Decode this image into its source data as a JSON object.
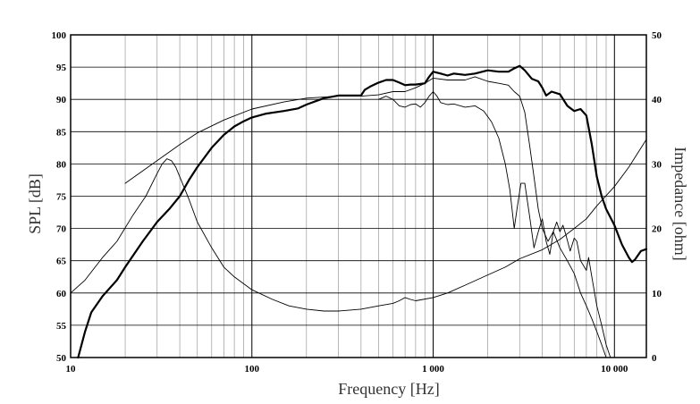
{
  "chart_data": {
    "type": "line",
    "xlabel": "Frequency [Hz]",
    "ylabel": "SPL [dB]",
    "y2label": "Impedance [ohm]",
    "x_scale": "log",
    "xlim": [
      10,
      15000
    ],
    "ylim": [
      50,
      100
    ],
    "y2lim": [
      0,
      50
    ],
    "grid": true,
    "x_ticks": [
      {
        "value": 10,
        "label": "10"
      },
      {
        "value": 100,
        "label": "100"
      },
      {
        "value": 1000,
        "label": "1 000"
      },
      {
        "value": 10000,
        "label": "10 000"
      }
    ],
    "y_ticks": [
      "50",
      "55",
      "60",
      "65",
      "70",
      "75",
      "80",
      "85",
      "90",
      "95",
      "100"
    ],
    "y2_ticks": [
      "0",
      "10",
      "20",
      "30",
      "40",
      "50"
    ],
    "series": [
      {
        "axis": "left",
        "stroke": "#000000",
        "width": 2.2,
        "points": [
          [
            11,
            50
          ],
          [
            12,
            54
          ],
          [
            13,
            57
          ],
          [
            15,
            59.5
          ],
          [
            18,
            62
          ],
          [
            20,
            64
          ],
          [
            25,
            68
          ],
          [
            30,
            71
          ],
          [
            35,
            73
          ],
          [
            40,
            75
          ],
          [
            45,
            77.5
          ],
          [
            50,
            79.5
          ],
          [
            60,
            82.5
          ],
          [
            70,
            84.5
          ],
          [
            80,
            85.8
          ],
          [
            90,
            86.6
          ],
          [
            100,
            87.2
          ],
          [
            120,
            87.8
          ],
          [
            150,
            88.2
          ],
          [
            180,
            88.6
          ],
          [
            200,
            89.2
          ],
          [
            250,
            90.2
          ],
          [
            300,
            90.6
          ],
          [
            350,
            90.6
          ],
          [
            400,
            90.6
          ],
          [
            420,
            91.5
          ],
          [
            450,
            92
          ],
          [
            500,
            92.6
          ],
          [
            550,
            93
          ],
          [
            600,
            93
          ],
          [
            650,
            92.6
          ],
          [
            700,
            92.2
          ],
          [
            750,
            92.3
          ],
          [
            800,
            92.3
          ],
          [
            900,
            92.5
          ],
          [
            950,
            93.5
          ],
          [
            1000,
            94.3
          ],
          [
            1100,
            94
          ],
          [
            1200,
            93.7
          ],
          [
            1300,
            94
          ],
          [
            1500,
            93.8
          ],
          [
            1700,
            94
          ],
          [
            2000,
            94.5
          ],
          [
            2300,
            94.3
          ],
          [
            2600,
            94.3
          ],
          [
            2800,
            94.8
          ],
          [
            3000,
            95.2
          ],
          [
            3200,
            94.5
          ],
          [
            3500,
            93.2
          ],
          [
            3800,
            92.8
          ],
          [
            4000,
            91.8
          ],
          [
            4200,
            90.6
          ],
          [
            4500,
            91.2
          ],
          [
            5000,
            90.8
          ],
          [
            5500,
            89
          ],
          [
            6000,
            88.2
          ],
          [
            6500,
            88.5
          ],
          [
            7000,
            87.5
          ],
          [
            7500,
            83
          ],
          [
            8000,
            78
          ],
          [
            8500,
            75
          ],
          [
            9000,
            73
          ],
          [
            10000,
            70.5
          ],
          [
            11000,
            67.5
          ],
          [
            12000,
            65.5
          ],
          [
            12500,
            64.8
          ],
          [
            13000,
            65.2
          ],
          [
            14000,
            66.5
          ],
          [
            15000,
            66.8
          ]
        ]
      },
      {
        "axis": "left",
        "stroke": "#000000",
        "width": 0.9,
        "points": [
          [
            20,
            77
          ],
          [
            30,
            80.5
          ],
          [
            40,
            83
          ],
          [
            50,
            84.8
          ],
          [
            70,
            86.8
          ],
          [
            100,
            88.5
          ],
          [
            150,
            89.6
          ],
          [
            200,
            90.2
          ],
          [
            300,
            90.5
          ],
          [
            400,
            90.5
          ],
          [
            500,
            90.7
          ],
          [
            600,
            91.2
          ],
          [
            700,
            91.2
          ],
          [
            800,
            91.8
          ],
          [
            900,
            92.5
          ],
          [
            1000,
            93.3
          ],
          [
            1200,
            93
          ],
          [
            1500,
            93
          ],
          [
            1700,
            93.5
          ],
          [
            2000,
            92.8
          ],
          [
            2300,
            92.5
          ],
          [
            2600,
            92.2
          ],
          [
            2800,
            91.2
          ],
          [
            3000,
            90.5
          ],
          [
            3200,
            88
          ],
          [
            3400,
            83
          ],
          [
            3600,
            78
          ],
          [
            3800,
            73
          ],
          [
            4000,
            70
          ],
          [
            4300,
            68
          ],
          [
            4600,
            69.5
          ],
          [
            5000,
            67
          ],
          [
            5500,
            65
          ],
          [
            6000,
            63
          ],
          [
            6500,
            60
          ],
          [
            7000,
            58
          ],
          [
            7500,
            56
          ],
          [
            8000,
            54
          ],
          [
            8500,
            52
          ],
          [
            9000,
            50
          ]
        ]
      },
      {
        "axis": "left",
        "stroke": "#000000",
        "width": 0.9,
        "points": [
          [
            500,
            90
          ],
          [
            550,
            90.5
          ],
          [
            600,
            90
          ],
          [
            650,
            89
          ],
          [
            700,
            88.8
          ],
          [
            750,
            89.2
          ],
          [
            800,
            89.3
          ],
          [
            850,
            88.8
          ],
          [
            900,
            89.5
          ],
          [
            950,
            90.5
          ],
          [
            1000,
            91.2
          ],
          [
            1050,
            90.5
          ],
          [
            1100,
            89.5
          ],
          [
            1200,
            89.2
          ],
          [
            1300,
            89.3
          ],
          [
            1500,
            88.8
          ],
          [
            1700,
            89
          ],
          [
            1900,
            88.2
          ],
          [
            2100,
            86.5
          ],
          [
            2300,
            84
          ],
          [
            2500,
            80
          ],
          [
            2650,
            76
          ],
          [
            2800,
            70
          ],
          [
            2900,
            73
          ],
          [
            3050,
            77
          ],
          [
            3200,
            77
          ],
          [
            3400,
            72
          ],
          [
            3600,
            67
          ],
          [
            3800,
            69.5
          ],
          [
            4000,
            71.5
          ],
          [
            4200,
            68
          ],
          [
            4400,
            66
          ],
          [
            4600,
            69.5
          ],
          [
            4800,
            71
          ],
          [
            5000,
            69.5
          ],
          [
            5200,
            70.5
          ],
          [
            5400,
            69
          ],
          [
            5700,
            66.5
          ],
          [
            6000,
            68.5
          ],
          [
            6200,
            68
          ],
          [
            6500,
            65
          ],
          [
            7000,
            63.5
          ],
          [
            7200,
            65.5
          ],
          [
            7500,
            62.5
          ],
          [
            8000,
            58
          ],
          [
            8500,
            55
          ],
          [
            9000,
            52
          ],
          [
            9500,
            50
          ]
        ]
      },
      {
        "axis": "right",
        "stroke": "#000000",
        "width": 0.9,
        "points": [
          [
            10,
            10
          ],
          [
            12,
            12
          ],
          [
            15,
            15.5
          ],
          [
            18,
            18
          ],
          [
            22,
            22
          ],
          [
            26,
            25
          ],
          [
            30,
            28.5
          ],
          [
            32,
            30
          ],
          [
            34,
            30.8
          ],
          [
            36,
            30.5
          ],
          [
            38,
            29.5
          ],
          [
            40,
            28
          ],
          [
            45,
            24.5
          ],
          [
            50,
            21
          ],
          [
            60,
            17
          ],
          [
            70,
            14
          ],
          [
            80,
            12.5
          ],
          [
            100,
            10.5
          ],
          [
            130,
            9
          ],
          [
            160,
            8
          ],
          [
            200,
            7.5
          ],
          [
            250,
            7.2
          ],
          [
            300,
            7.2
          ],
          [
            400,
            7.5
          ],
          [
            500,
            8
          ],
          [
            600,
            8.4
          ],
          [
            650,
            8.8
          ],
          [
            700,
            9.3
          ],
          [
            750,
            9
          ],
          [
            800,
            8.8
          ],
          [
            1000,
            9.3
          ],
          [
            1200,
            10
          ],
          [
            1500,
            11.2
          ],
          [
            2000,
            12.8
          ],
          [
            2500,
            14
          ],
          [
            3000,
            15.3
          ],
          [
            4000,
            16.7
          ],
          [
            5000,
            18.3
          ],
          [
            6000,
            20
          ],
          [
            7000,
            21.5
          ],
          [
            8000,
            23.5
          ],
          [
            10000,
            26.5
          ],
          [
            12000,
            29.5
          ],
          [
            15000,
            33.8
          ]
        ]
      }
    ]
  }
}
